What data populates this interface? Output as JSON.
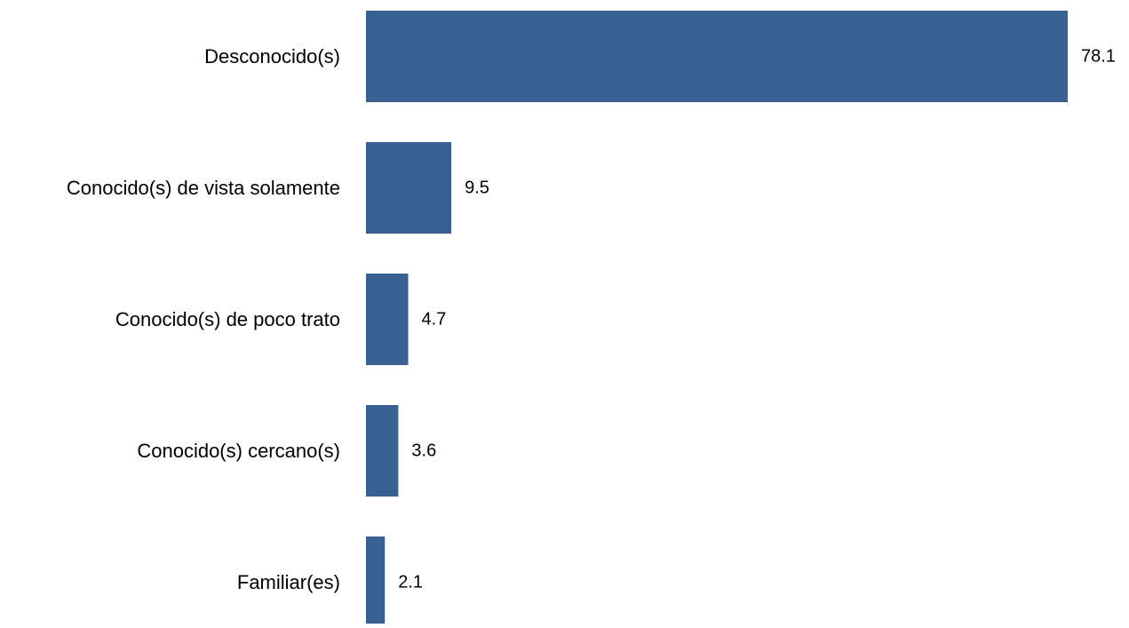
{
  "chart_data": {
    "type": "bar",
    "orientation": "horizontal",
    "categories": [
      "Desconocido(s)",
      "Conocido(s) de vista solamente",
      "Conocido(s) de poco trato",
      "Conocido(s) cercano(s)",
      "Familiar(es)"
    ],
    "values": [
      78.1,
      9.5,
      4.7,
      3.6,
      2.1
    ],
    "value_labels": [
      "78.1",
      "9.5",
      "4.7",
      "3.6",
      "2.1"
    ],
    "xlim": [
      0,
      78.1
    ],
    "grid": false,
    "legend": "none",
    "bar_color": "#386192"
  }
}
